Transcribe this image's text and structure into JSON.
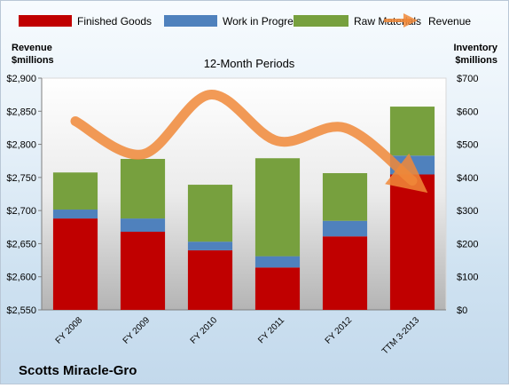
{
  "chart_data": {
    "type": "bar",
    "stacked": true,
    "title": "12-Month Periods",
    "company": "Scotts Miracle-Gro",
    "categories": [
      "FY 2008",
      "FY 2009",
      "FY 2010",
      "FY 2011",
      "FY 2012",
      "TTM 3-2013"
    ],
    "left_axis": {
      "label_line1": "Revenue",
      "label_line2": "$millions",
      "ylim": [
        2550,
        2900
      ],
      "ticks": [
        "$2,550",
        "$2,600",
        "$2,650",
        "$2,700",
        "$2,750",
        "$2,800",
        "$2,850",
        "$2,900"
      ],
      "tick_values": [
        2550,
        2600,
        2650,
        2700,
        2750,
        2800,
        2850,
        2900
      ]
    },
    "right_axis": {
      "label_line1": "Inventory",
      "label_line2": "$millions",
      "ylim": [
        0,
        700
      ],
      "ticks": [
        "$0",
        "$100",
        "$200",
        "$300",
        "$400",
        "$500",
        "$600",
        "$700"
      ],
      "tick_values": [
        0,
        100,
        200,
        300,
        400,
        500,
        600,
        700
      ]
    },
    "series": [
      {
        "name": "Finished Goods",
        "color": "#c00000",
        "axis": "right",
        "values": [
          276,
          236,
          180,
          128,
          222,
          409
        ]
      },
      {
        "name": "Work in Progress",
        "color": "#4f81bd",
        "axis": "right",
        "values": [
          27,
          40,
          26,
          34,
          47,
          57
        ]
      },
      {
        "name": "Raw Materials",
        "color": "#77a03e",
        "axis": "right",
        "values": [
          112,
          180,
          172,
          296,
          144,
          148
        ]
      }
    ],
    "line_series": {
      "name": "Revenue",
      "color": "#f08838",
      "axis": "left",
      "values": [
        2835,
        2785,
        2875,
        2805,
        2825,
        2745
      ]
    },
    "legend_position": "top",
    "grid": false
  }
}
